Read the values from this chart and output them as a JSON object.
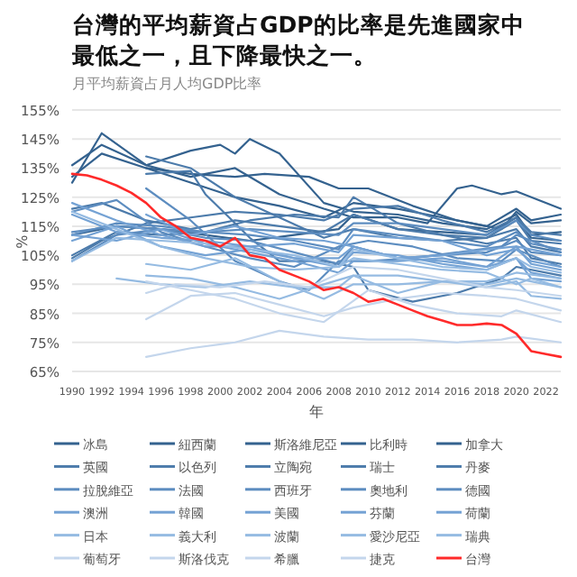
{
  "chart_data": {
    "type": "line",
    "title": "台灣的平均薪資占GDP的比率是先進國家中最低之一，且下降最快之一。",
    "subtitle": "月平均薪資占月人均GDP比率",
    "xlabel": "年",
    "ylabel": "%",
    "xlim": [
      1990,
      2023
    ],
    "ylim": [
      65,
      155
    ],
    "xticks": [
      1990,
      1992,
      1994,
      1996,
      1998,
      2000,
      2002,
      2004,
      2006,
      2008,
      2010,
      2012,
      2014,
      2016,
      2018,
      2020,
      2022
    ],
    "yticks": [
      {
        "value": 65,
        "label": "65%"
      },
      {
        "value": 75,
        "label": "75%"
      },
      {
        "value": 85,
        "label": "85%"
      },
      {
        "value": 95,
        "label": "95%"
      },
      {
        "value": 105,
        "label": "105%"
      },
      {
        "value": 115,
        "label": "115%"
      },
      {
        "value": 125,
        "label": "125%"
      },
      {
        "value": 135,
        "label": "135%"
      },
      {
        "value": 145,
        "label": "145%"
      },
      {
        "value": 155,
        "label": "155%"
      }
    ],
    "grid": "y",
    "legend": "bottom",
    "marker": "none",
    "line_style": "solid",
    "series": [
      {
        "name": "冰島",
        "color": "#34628f",
        "x": [
          1990,
          1992,
          1995,
          1998,
          2001,
          2004,
          2007,
          2009,
          2012,
          2014,
          2016,
          2017,
          2019,
          2020,
          2023
        ],
        "values": [
          130,
          147,
          136,
          132,
          135,
          126,
          121,
          118,
          118,
          116,
          128,
          129,
          126,
          127,
          121
        ]
      },
      {
        "name": "紐西蘭",
        "color": "#34628f",
        "x": [
          1990,
          1992,
          1995,
          1998,
          2000,
          2001,
          2002,
          2004,
          2007,
          2009,
          2012,
          2015,
          2018,
          2020,
          2021,
          2023
        ],
        "values": [
          136,
          143,
          136,
          141,
          143,
          140,
          145,
          140,
          123,
          120,
          119,
          116,
          114,
          119,
          112,
          113
        ]
      },
      {
        "name": "斯洛維尼亞",
        "color": "#34628f",
        "x": [
          1995,
          1998,
          2001,
          2003,
          2006,
          2008,
          2010,
          2013,
          2016,
          2019,
          2020,
          2021,
          2023
        ],
        "values": [
          135,
          133,
          132,
          133,
          132,
          128,
          128,
          122,
          117,
          114,
          120,
          116,
          117
        ]
      },
      {
        "name": "比利時",
        "color": "#34628f",
        "x": [
          1990,
          1992,
          1995,
          1998,
          2001,
          2004,
          2007,
          2009,
          2012,
          2015,
          2018,
          2020,
          2021,
          2023
        ],
        "values": [
          132,
          140,
          135,
          130,
          125,
          122,
          118,
          123,
          121,
          118,
          115,
          121,
          117,
          119
        ]
      },
      {
        "name": "加拿大",
        "color": "#34628f",
        "x": [
          1990,
          1993,
          1996,
          1999,
          2002,
          2005,
          2008,
          2009,
          2012,
          2015,
          2018,
          2020,
          2021,
          2023
        ],
        "values": [
          112,
          115,
          114,
          112,
          110,
          112,
          114,
          119,
          114,
          113,
          112,
          118,
          111,
          110
        ]
      },
      {
        "name": "英國",
        "color": "#4c7bab",
        "x": [
          1990,
          1993,
          1996,
          1999,
          2002,
          2005,
          2008,
          2009,
          2012,
          2015,
          2018,
          2020,
          2021,
          2023
        ],
        "values": [
          105,
          113,
          112,
          113,
          117,
          119,
          118,
          125,
          116,
          112,
          111,
          114,
          108,
          106
        ]
      },
      {
        "name": "以色列",
        "color": "#4c7bab",
        "x": [
          1995,
          1998,
          2001,
          2004,
          2007,
          2009,
          2012,
          2015,
          2018,
          2020,
          2021,
          2023
        ],
        "values": [
          139,
          135,
          125,
          118,
          111,
          114,
          111,
          110,
          111,
          117,
          110,
          109
        ]
      },
      {
        "name": "立陶宛",
        "color": "#4c7bab",
        "x": [
          1995,
          1998,
          1999,
          2002,
          2004,
          2007,
          2009,
          2010,
          2013,
          2016,
          2019,
          2020,
          2023
        ],
        "values": [
          133,
          134,
          126,
          111,
          103,
          103,
          101,
          93,
          89,
          92,
          97,
          101,
          98
        ]
      },
      {
        "name": "瑞士",
        "color": "#4c7bab",
        "x": [
          1990,
          1992,
          1995,
          1998,
          2001,
          2004,
          2007,
          2009,
          2012,
          2015,
          2018,
          2020,
          2021,
          2023
        ],
        "values": [
          104,
          110,
          116,
          118,
          120,
          119,
          117,
          121,
          122,
          117,
          113,
          118,
          113,
          112
        ]
      },
      {
        "name": "丹麥",
        "color": "#4c7bab",
        "x": [
          1990,
          1992,
          1995,
          1998,
          2001,
          2004,
          2007,
          2009,
          2012,
          2015,
          2018,
          2020,
          2021,
          2023
        ],
        "values": [
          121,
          123,
          117,
          114,
          117,
          115,
          113,
          119,
          114,
          112,
          109,
          111,
          104,
          102
        ]
      },
      {
        "name": "拉脫維亞",
        "color": "#5d8dc0",
        "x": [
          1995,
          1998,
          2001,
          2004,
          2006,
          2008,
          2010,
          2013,
          2016,
          2019,
          2020,
          2023
        ],
        "values": [
          128,
          117,
          103,
          96,
          93,
          103,
          103,
          104,
          106,
          108,
          112,
          106
        ]
      },
      {
        "name": "法國",
        "color": "#5d8dc0",
        "x": [
          1990,
          1993,
          1996,
          1999,
          2002,
          2005,
          2008,
          2009,
          2012,
          2015,
          2018,
          2020,
          2021,
          2023
        ],
        "values": [
          113,
          115,
          114,
          113,
          114,
          113,
          112,
          116,
          116,
          114,
          112,
          117,
          112,
          110
        ]
      },
      {
        "name": "西班牙",
        "color": "#5d8dc0",
        "x": [
          1990,
          1993,
          1996,
          1999,
          2002,
          2005,
          2008,
          2010,
          2013,
          2016,
          2019,
          2020,
          2023
        ],
        "values": [
          120,
          124,
          113,
          108,
          104,
          101,
          108,
          110,
          108,
          104,
          103,
          107,
          101
        ]
      },
      {
        "name": "奧地利",
        "color": "#5d8dc0",
        "x": [
          1990,
          1993,
          1996,
          1999,
          2002,
          2005,
          2008,
          2009,
          2012,
          2015,
          2018,
          2020,
          2021,
          2023
        ],
        "values": [
          112,
          116,
          115,
          113,
          112,
          110,
          107,
          114,
          112,
          110,
          108,
          113,
          109,
          107
        ]
      },
      {
        "name": "德國",
        "color": "#5d8dc0",
        "x": [
          1990,
          1993,
          1996,
          1999,
          2002,
          2005,
          2008,
          2009,
          2012,
          2015,
          2018,
          2020,
          2021,
          2023
        ],
        "values": [
          103,
          112,
          114,
          111,
          110,
          106,
          102,
          108,
          104,
          105,
          106,
          110,
          106,
          105
        ]
      },
      {
        "name": "澳洲",
        "color": "#74a2d4",
        "x": [
          1990,
          1993,
          1996,
          1999,
          2002,
          2005,
          2008,
          2009,
          2012,
          2015,
          2018,
          2020,
          2021,
          2023
        ],
        "values": [
          112,
          110,
          114,
          109,
          106,
          103,
          99,
          103,
          103,
          104,
          101,
          104,
          97,
          96
        ]
      },
      {
        "name": "韓國",
        "color": "#74a2d4",
        "x": [
          1995,
          1998,
          2001,
          2004,
          2007,
          2009,
          2012,
          2015,
          2018,
          2020,
          2023
        ],
        "values": [
          119,
          112,
          115,
          111,
          110,
          108,
          104,
          105,
          107,
          108,
          105
        ]
      },
      {
        "name": "美國",
        "color": "#74a2d4",
        "x": [
          1990,
          1993,
          1996,
          1999,
          2002,
          2005,
          2008,
          2009,
          2012,
          2015,
          2018,
          2020,
          2021,
          2023
        ],
        "values": [
          119,
          113,
          111,
          110,
          108,
          104,
          104,
          108,
          104,
          103,
          101,
          108,
          102,
          100
        ]
      },
      {
        "name": "芬蘭",
        "color": "#74a2d4",
        "x": [
          1990,
          1993,
          1996,
          1999,
          2002,
          2005,
          2008,
          2009,
          2012,
          2015,
          2018,
          2020,
          2021,
          2023
        ],
        "values": [
          123,
          117,
          112,
          108,
          108,
          109,
          106,
          112,
          111,
          110,
          105,
          107,
          103,
          101
        ]
      },
      {
        "name": "荷蘭",
        "color": "#74a2d4",
        "x": [
          1990,
          1993,
          1996,
          1999,
          2002,
          2005,
          2008,
          2009,
          2012,
          2015,
          2018,
          2020,
          2021,
          2023
        ],
        "values": [
          110,
          115,
          108,
          105,
          107,
          104,
          101,
          106,
          105,
          102,
          100,
          104,
          99,
          97
        ]
      },
      {
        "name": "日本",
        "color": "#95bbe2",
        "x": [
          1990,
          1993,
          1996,
          1999,
          2002,
          2005,
          2008,
          2009,
          2012,
          2015,
          2018,
          2020,
          2021,
          2023
        ],
        "values": [
          103,
          111,
          110,
          109,
          107,
          105,
          101,
          107,
          104,
          101,
          100,
          104,
          101,
          99
        ]
      },
      {
        "name": "義大利",
        "color": "#95bbe2",
        "x": [
          1990,
          1993,
          1996,
          1999,
          2002,
          2005,
          2008,
          2009,
          2012,
          2015,
          2018,
          2020,
          2021,
          2023
        ],
        "values": [
          120,
          114,
          108,
          104,
          101,
          100,
          101,
          104,
          102,
          100,
          99,
          95,
          97,
          94
        ]
      },
      {
        "name": "波蘭",
        "color": "#95bbe2",
        "x": [
          1995,
          1998,
          2001,
          2004,
          2007,
          2009,
          2012,
          2015,
          2018,
          2020,
          2023
        ],
        "values": [
          102,
          100,
          104,
          96,
          90,
          95,
          95,
          96,
          96,
          99,
          97
        ]
      },
      {
        "name": "愛沙尼亞",
        "color": "#95bbe2",
        "x": [
          1995,
          1998,
          2001,
          2004,
          2007,
          2009,
          2012,
          2015,
          2018,
          2020,
          2023
        ],
        "values": [
          98,
          97,
          94,
          90,
          95,
          98,
          92,
          96,
          95,
          97,
          94
        ]
      },
      {
        "name": "瑞典",
        "color": "#95bbe2",
        "x": [
          1993,
          1996,
          1999,
          2002,
          2005,
          2008,
          2009,
          2012,
          2015,
          2018,
          2020,
          2021,
          2023
        ],
        "values": [
          97,
          95,
          94,
          96,
          94,
          94,
          98,
          98,
          96,
          94,
          96,
          91,
          90
        ]
      },
      {
        "name": "葡萄牙",
        "color": "#c4d6ec",
        "x": [
          1995,
          1997,
          2000,
          2003,
          2006,
          2009,
          2012,
          2015,
          2018,
          2020,
          2023
        ],
        "values": [
          92,
          95,
          94,
          96,
          94,
          101,
          100,
          97,
          94,
          93,
          91
        ]
      },
      {
        "name": "斯洛伐克",
        "color": "#c4d6ec",
        "x": [
          1995,
          1998,
          2001,
          2004,
          2007,
          2009,
          2012,
          2015,
          2018,
          2020,
          2023
        ],
        "values": [
          83,
          91,
          92,
          88,
          84,
          87,
          90,
          92,
          91,
          90,
          86
        ]
      },
      {
        "name": "希臘",
        "color": "#c4d6ec",
        "x": [
          1995,
          1998,
          2001,
          2004,
          2007,
          2010,
          2013,
          2016,
          2019,
          2020,
          2023
        ],
        "values": [
          96,
          93,
          90,
          85,
          82,
          93,
          88,
          85,
          84,
          86,
          82
        ]
      },
      {
        "name": "捷克",
        "color": "#c4d6ec",
        "x": [
          1995,
          1998,
          2001,
          2004,
          2007,
          2010,
          2013,
          2016,
          2019,
          2020,
          2023
        ],
        "values": [
          70,
          73,
          75,
          79,
          77,
          76,
          76,
          75,
          76,
          77,
          75
        ]
      },
      {
        "name": "台灣",
        "color": "#ff2a2a",
        "x": [
          1990,
          1991,
          1992,
          1993,
          1994,
          1995,
          1996,
          1997,
          1998,
          1999,
          2000,
          2001,
          2002,
          2003,
          2004,
          2005,
          2006,
          2007,
          2008,
          2009,
          2010,
          2011,
          2012,
          2013,
          2014,
          2015,
          2016,
          2017,
          2018,
          2019,
          2020,
          2021,
          2022,
          2023
        ],
        "values": [
          133,
          132.5,
          131,
          129,
          126.5,
          123,
          118,
          115,
          111,
          110,
          108,
          111,
          105,
          104,
          100,
          98,
          96,
          93,
          94,
          92,
          89,
          90,
          88,
          86,
          84,
          82.5,
          81,
          81,
          81.5,
          81,
          78,
          72,
          71,
          70
        ]
      }
    ]
  }
}
